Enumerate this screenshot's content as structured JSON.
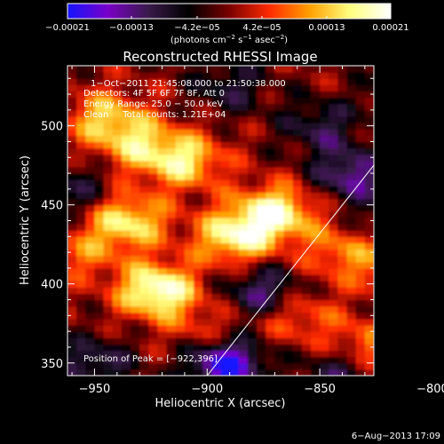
{
  "chart_data": {
    "type": "heatmap",
    "title": "Reconstructed RHESSI Image",
    "xlabel": "Heliocentric X (arcsec)",
    "ylabel": "Heliocentric Y (arcsec)",
    "xlim": [
      -962,
      -826
    ],
    "ylim": [
      342,
      538
    ],
    "x_ticks": [
      -950,
      -900,
      -850,
      -800
    ],
    "x_tick_labels": [
      "−950",
      "−900",
      "−850",
      "−800"
    ],
    "y_ticks": [
      350,
      400,
      450,
      500
    ],
    "y_tick_labels": [
      "350",
      "400",
      "450",
      "500"
    ],
    "colorbar": {
      "min": -0.00021,
      "max": 0.00021,
      "tick_labels": [
        "−0.00021",
        "−0.00013",
        "−4.2e−05",
        "4.2e−05",
        "0.00013",
        "0.00021"
      ],
      "unit_parts": [
        "(photons cm",
        "−2",
        " s",
        "−1",
        " asec",
        "−2",
        ")"
      ],
      "colors": [
        "#1414ff",
        "#7a00c8",
        "#3a1a4a",
        "#000000",
        "#7a0000",
        "#ff2a00",
        "#ffa000",
        "#ffff80",
        "#ffffff"
      ]
    },
    "annotations": {
      "time": "1−Oct−2011 21:45:08.000 to 21:50:38.000",
      "detectors": "Detectors: 4F 5F 6F 7F 8F, Att 0",
      "energy": "Energy Range: 25.0 − 50.0 keV",
      "clean": "Clean     Total counts: 1.21E+04",
      "peak": "Position of Peak = [−922,396]"
    },
    "limb_line": [
      [
        -900,
        342
      ],
      [
        -791,
        538
      ]
    ],
    "bright_sources": [
      {
        "x": -922,
        "y": 396,
        "level": 1.0
      },
      {
        "x": -870,
        "y": 445,
        "level": 0.9
      },
      {
        "x": -888,
        "y": 430,
        "level": 0.8
      },
      {
        "x": -935,
        "y": 440,
        "level": 0.75
      },
      {
        "x": -910,
        "y": 478,
        "level": 0.7
      },
      {
        "x": -945,
        "y": 505,
        "level": 0.6
      },
      {
        "x": -930,
        "y": 488,
        "level": 0.55
      },
      {
        "x": -812,
        "y": 408,
        "level": 0.6
      },
      {
        "x": -840,
        "y": 420,
        "level": 0.45
      },
      {
        "x": -830,
        "y": 360,
        "level": 0.5
      },
      {
        "x": -808,
        "y": 478,
        "level": 0.4
      },
      {
        "x": -860,
        "y": 380,
        "level": 0.4
      },
      {
        "x": -900,
        "y": 370,
        "level": 0.3
      },
      {
        "x": -955,
        "y": 420,
        "level": 0.35
      }
    ],
    "dark_sources": [
      {
        "x": -892,
        "y": 350,
        "level": -1.0
      },
      {
        "x": -875,
        "y": 395,
        "level": -0.6
      },
      {
        "x": -835,
        "y": 470,
        "level": -0.7
      },
      {
        "x": -810,
        "y": 520,
        "level": -0.5
      },
      {
        "x": -850,
        "y": 500,
        "level": -0.45
      },
      {
        "x": -815,
        "y": 440,
        "level": -0.4
      },
      {
        "x": -840,
        "y": 345,
        "level": -0.5
      },
      {
        "x": -950,
        "y": 350,
        "level": -0.5
      },
      {
        "x": -960,
        "y": 460,
        "level": -0.4
      },
      {
        "x": -890,
        "y": 525,
        "level": -0.4
      },
      {
        "x": -800,
        "y": 385,
        "level": -0.35
      }
    ]
  },
  "footer": {
    "date": "6−Aug−2013 17:09"
  }
}
